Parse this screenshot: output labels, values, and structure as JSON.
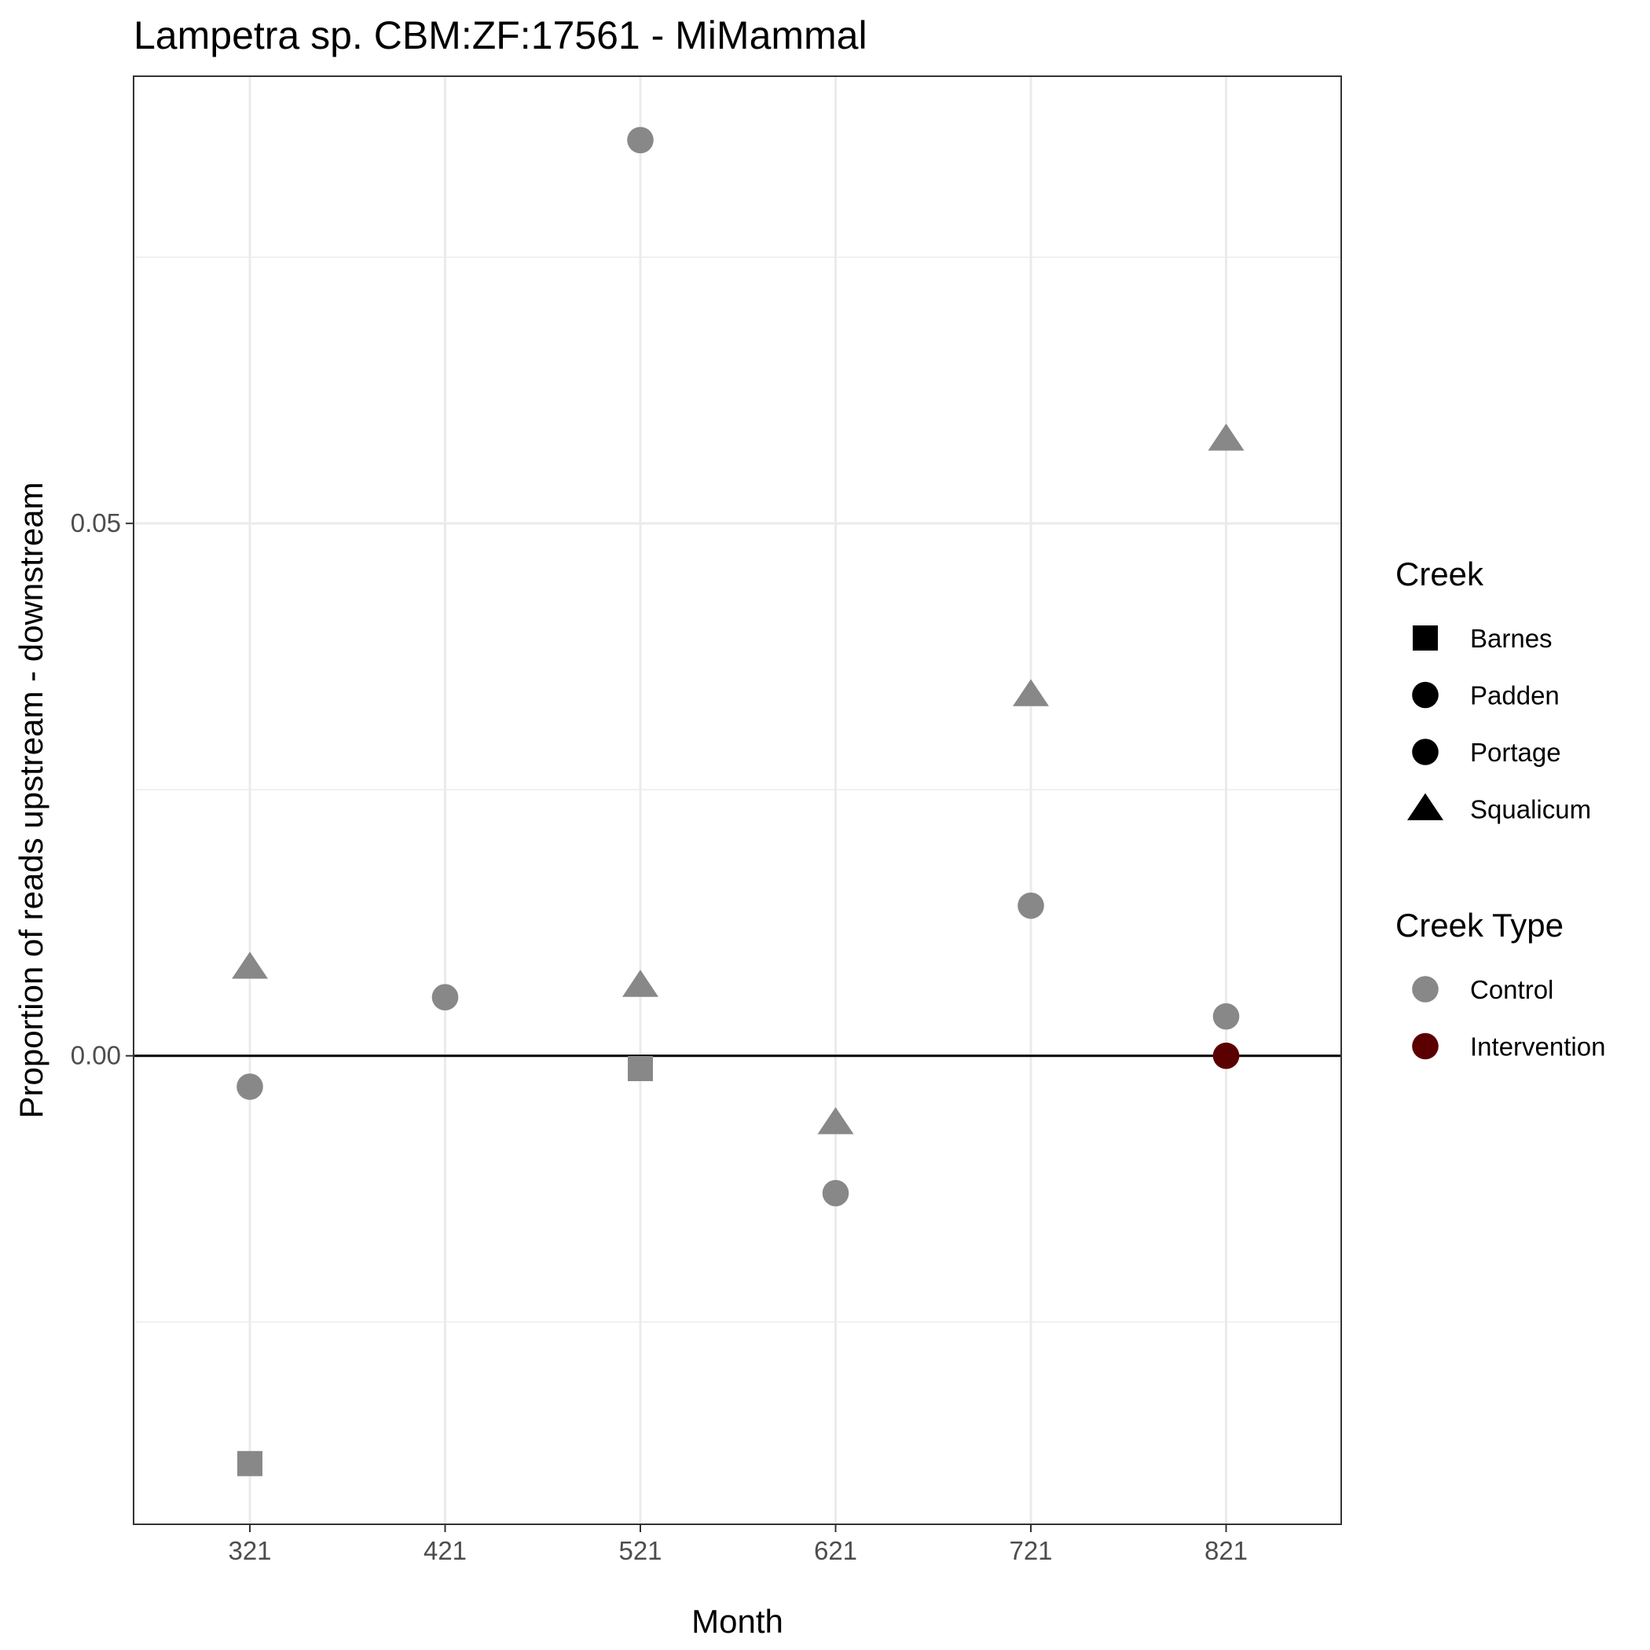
{
  "chart_data": {
    "type": "scatter",
    "title": "Lampetra sp. CBM:ZF:17561 - MiMammal",
    "xlabel": "Month",
    "ylabel": "Proportion of reads upstream - downstream",
    "x_categories": [
      "321",
      "421",
      "521",
      "621",
      "721",
      "821"
    ],
    "y_ticks": [
      {
        "value": 0.05,
        "label": "0.05"
      },
      {
        "value": 0.0,
        "label": "0.00"
      }
    ],
    "ylim": [
      -0.044,
      0.092
    ],
    "y_minor_gridlines": [
      -0.025,
      0.025,
      0.075
    ],
    "reference_line": 0,
    "grid": true,
    "legend_position": "right",
    "colors": {
      "Control": "#888888",
      "Intervention": "#5a0000"
    },
    "points": [
      {
        "month": "321",
        "creek": "Barnes",
        "creek_type": "Control",
        "y": -0.0383
      },
      {
        "month": "321",
        "creek": "Padden",
        "creek_type": "Control",
        "y": -0.0029
      },
      {
        "month": "321",
        "creek": "Squalicum",
        "creek_type": "Control",
        "y": 0.0083
      },
      {
        "month": "421",
        "creek": "Padden",
        "creek_type": "Control",
        "y": 0.0055
      },
      {
        "month": "521",
        "creek": "Padden",
        "creek_type": "Control",
        "y": 0.086
      },
      {
        "month": "521",
        "creek": "Squalicum",
        "creek_type": "Control",
        "y": 0.0066
      },
      {
        "month": "521",
        "creek": "Barnes",
        "creek_type": "Control",
        "y": -0.0012
      },
      {
        "month": "621",
        "creek": "Squalicum",
        "creek_type": "Control",
        "y": -0.0063
      },
      {
        "month": "621",
        "creek": "Padden",
        "creek_type": "Control",
        "y": -0.0129
      },
      {
        "month": "721",
        "creek": "Squalicum",
        "creek_type": "Control",
        "y": 0.0339
      },
      {
        "month": "721",
        "creek": "Padden",
        "creek_type": "Control",
        "y": 0.0141
      },
      {
        "month": "821",
        "creek": "Squalicum",
        "creek_type": "Control",
        "y": 0.0579
      },
      {
        "month": "821",
        "creek": "Padden",
        "creek_type": "Control",
        "y": 0.0037
      },
      {
        "month": "821",
        "creek": "Portage",
        "creek_type": "Intervention",
        "y": 0.0
      }
    ],
    "legends": [
      {
        "title": "Creek",
        "entries": [
          {
            "label": "Barnes",
            "shape": "square"
          },
          {
            "label": "Padden",
            "shape": "circle"
          },
          {
            "label": "Portage",
            "shape": "circle"
          },
          {
            "label": "Squalicum",
            "shape": "triangle"
          }
        ]
      },
      {
        "title": "Creek Type",
        "entries": [
          {
            "label": "Control",
            "shape": "circle",
            "color": "#888888"
          },
          {
            "label": "Intervention",
            "shape": "circle",
            "color": "#5a0000"
          }
        ]
      }
    ]
  }
}
